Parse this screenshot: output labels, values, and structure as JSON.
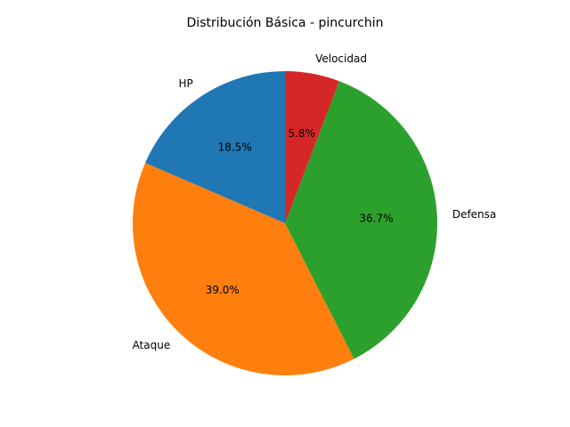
{
  "chart_data": {
    "type": "pie",
    "title": "Distribución Básica - pincurchin",
    "start_angle_deg": 90,
    "direction": "counterclockwise",
    "slices": [
      {
        "label": "HP",
        "value": 18.5,
        "pct_label": "18.5%",
        "color": "#1f77b4"
      },
      {
        "label": "Ataque",
        "value": 39.0,
        "pct_label": "39.0%",
        "color": "#ff7f0e"
      },
      {
        "label": "Defensa",
        "value": 36.7,
        "pct_label": "36.7%",
        "color": "#2ca02c"
      },
      {
        "label": "Velocidad",
        "value": 5.8,
        "pct_label": "5.8%",
        "color": "#d62728"
      }
    ]
  }
}
